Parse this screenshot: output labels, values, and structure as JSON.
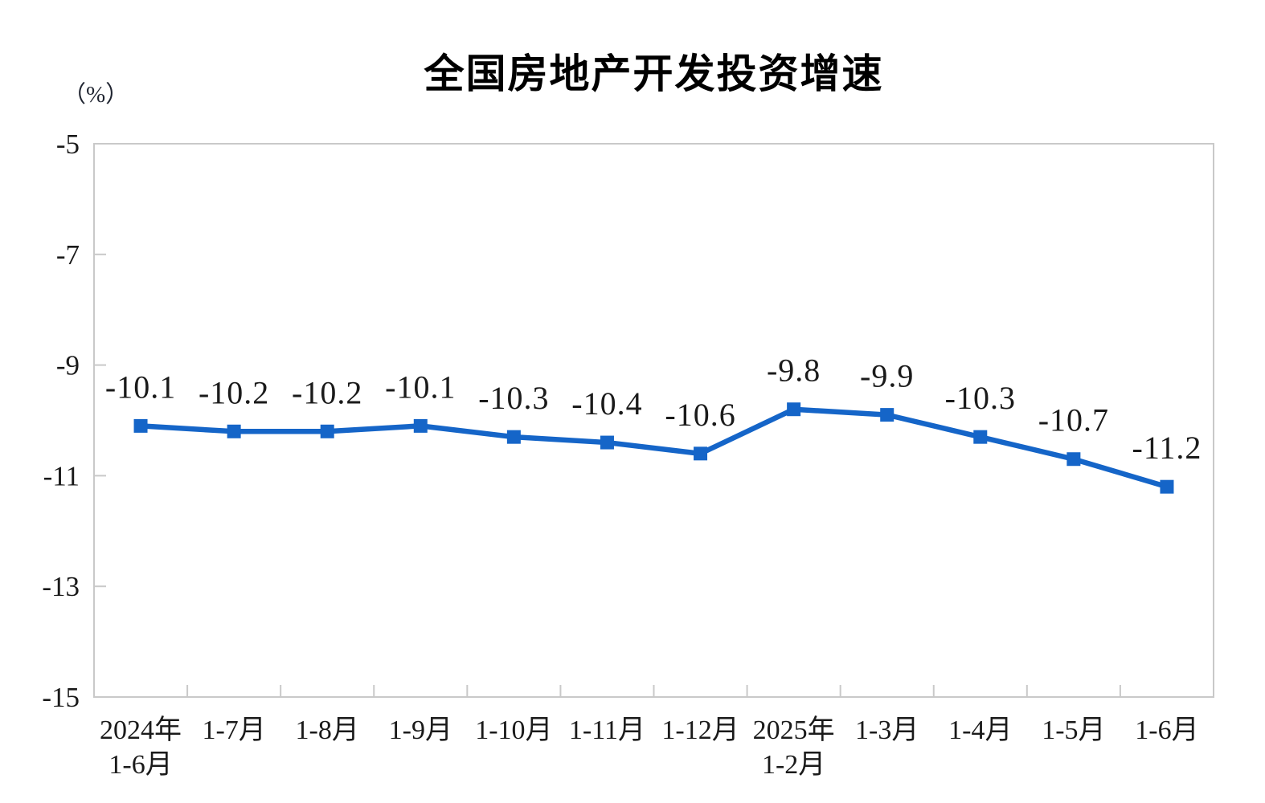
{
  "chart_data": {
    "type": "line",
    "title": "全国房地产开发投资增速",
    "unit": "（%）",
    "categories": [
      "2024年\n1-6月",
      "1-7月",
      "1-8月",
      "1-9月",
      "1-10月",
      "1-11月",
      "1-12月",
      "2025年\n1-2月",
      "1-3月",
      "1-4月",
      "1-5月",
      "1-6月"
    ],
    "values": [
      -10.1,
      -10.2,
      -10.2,
      -10.1,
      -10.3,
      -10.4,
      -10.6,
      -9.8,
      -9.9,
      -10.3,
      -10.7,
      -11.2
    ],
    "data_labels": [
      "-10.1",
      "-10.2",
      "-10.2",
      "-10.1",
      "-10.3",
      "-10.4",
      "-10.6",
      "-9.8",
      "-9.9",
      "-10.3",
      "-10.7",
      "-11.2"
    ],
    "yticks": [
      -5,
      -7,
      -9,
      -11,
      -13,
      -15
    ],
    "ytick_labels": [
      "-5",
      "-7",
      "-9",
      "-11",
      "-13",
      "-15"
    ],
    "ylim": [
      -15,
      -5
    ],
    "xlabel": "",
    "ylabel": "（%）",
    "grid": false,
    "legend_position": "none",
    "marker": "square",
    "line_color": "#1565C8",
    "axis_color": "#C9C9C9",
    "text_color": "#1A1A1A",
    "title_color": "#000000",
    "background_color": "#FFFFFF"
  }
}
